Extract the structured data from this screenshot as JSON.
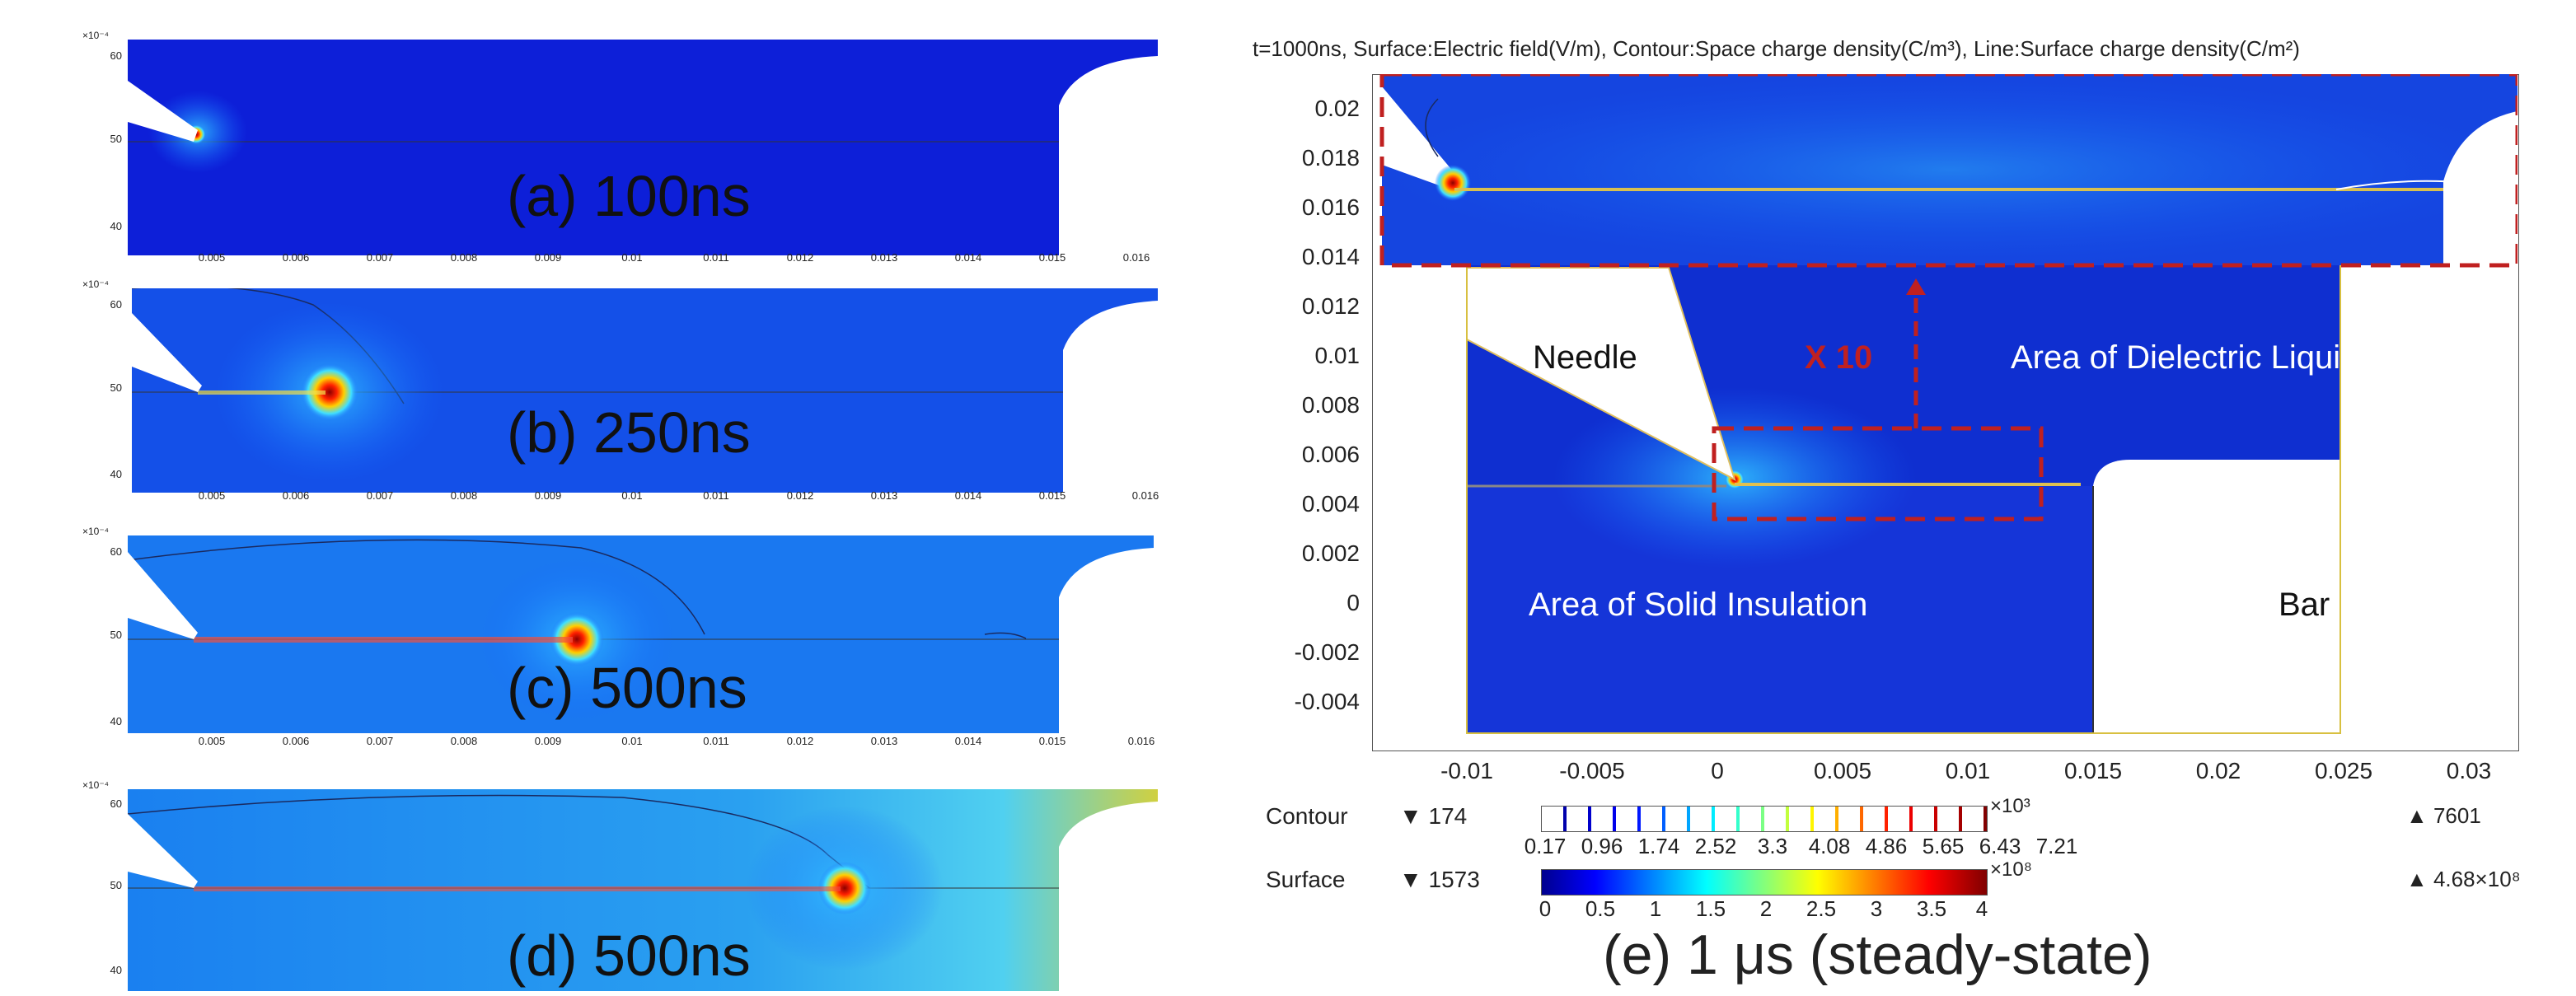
{
  "left_panels": [
    {
      "label": "(a) 100ns"
    },
    {
      "label": "(b) 250ns"
    },
    {
      "label": "(c) 500ns"
    },
    {
      "label": "(d) 500ns"
    }
  ],
  "left_y_exponent": "×10⁻⁴",
  "left_y_ticks": [
    "60",
    "50",
    "40"
  ],
  "left_x_ticks": [
    "0.005",
    "0.006",
    "0.007",
    "0.008",
    "0.009",
    "0.01",
    "0.011",
    "0.012",
    "0.013",
    "0.014",
    "0.015",
    "0.016"
  ],
  "right_panel": {
    "title": "t=1000ns, Surface:Electric field(V/m), Contour:Space charge density(C/m³), Line:Surface charge density(C/m²)",
    "y_ticks": [
      "0.02",
      "0.018",
      "0.016",
      "0.014",
      "0.012",
      "0.01",
      "0.008",
      "0.006",
      "0.004",
      "0.002",
      "0",
      "-0.002",
      "-0.004"
    ],
    "x_ticks": [
      "-0.01",
      "-0.005",
      "0",
      "0.005",
      "0.01",
      "0.015",
      "0.02",
      "0.025",
      "0.03"
    ],
    "regions": {
      "needle": "Needle",
      "dielectric": "Area of Dielectric Liquid",
      "solid": "Area of Solid Insulation",
      "bar": "Bar"
    },
    "zoom_label": "X 10",
    "caption": "(e) 1 μs (steady-state)",
    "contour": {
      "label": "Contour",
      "min": "▼ 174",
      "max": "▲ 7601",
      "exponent": "×10³",
      "ticks": [
        "0.17",
        "0.96",
        "1.74",
        "2.52",
        "3.3",
        "4.08",
        "4.86",
        "5.65",
        "6.43",
        "7.21"
      ]
    },
    "surface": {
      "label": "Surface",
      "min": "▼ 1573",
      "max": "▲ 4.68×10⁸",
      "exponent": "×10⁸",
      "ticks": [
        "0",
        "0.5",
        "1",
        "1.5",
        "2",
        "2.5",
        "3",
        "3.5",
        "4"
      ]
    }
  }
}
